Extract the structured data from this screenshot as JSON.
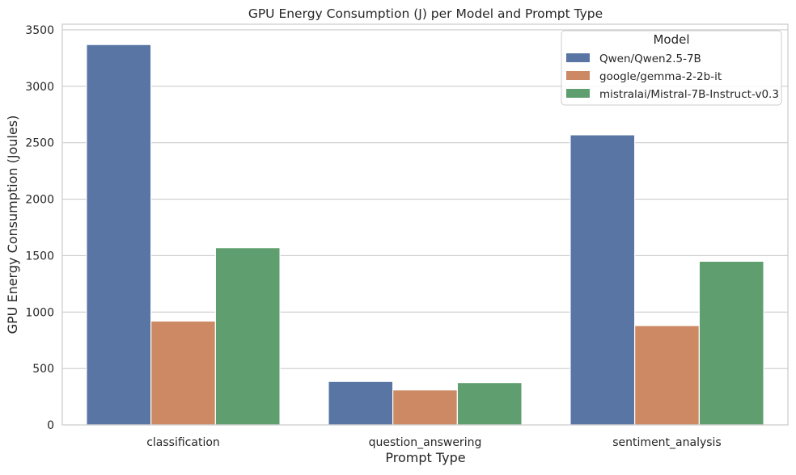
{
  "chart_data": {
    "type": "bar",
    "title": "GPU Energy Consumption (J) per Model and Prompt Type",
    "xlabel": "Prompt Type",
    "ylabel": "GPU Energy Consumption (Joules)",
    "categories": [
      "classification",
      "question_answering",
      "sentiment_analysis"
    ],
    "series": [
      {
        "name": "Qwen/Qwen2.5-7B",
        "color": "#5875a4",
        "values": [
          3370,
          385,
          2570
        ]
      },
      {
        "name": "google/gemma-2-2b-it",
        "color": "#cc8963",
        "values": [
          920,
          310,
          880
        ]
      },
      {
        "name": "mistralai/Mistral-7B-Instruct-v0.3",
        "color": "#5f9e6e",
        "values": [
          1570,
          375,
          1450
        ]
      }
    ],
    "ylim": [
      0,
      3550
    ],
    "yticks": [
      0,
      500,
      1000,
      1500,
      2000,
      2500,
      3000,
      3500
    ],
    "legend": {
      "title": "Model",
      "position": "top-right"
    },
    "grid": "y"
  }
}
